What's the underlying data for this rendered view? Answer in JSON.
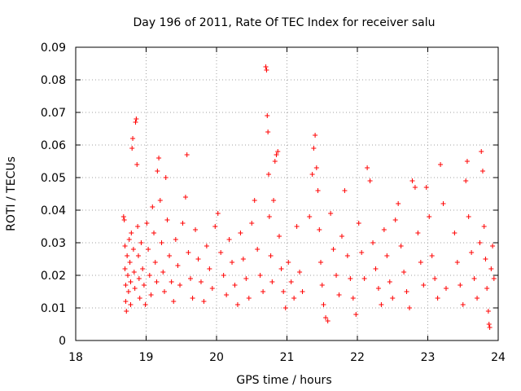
{
  "chart_data": {
    "type": "scatter",
    "title": "Day 196 of 2011, Rate Of TEC Index for receiver salu",
    "xlabel": "GPS time / hours",
    "ylabel": "ROTI / TECUs",
    "xlim": [
      18,
      24
    ],
    "ylim": [
      0,
      0.09
    ],
    "xticks": [
      "18",
      "19",
      "20",
      "21",
      "22",
      "23",
      "24"
    ],
    "yticks": [
      "0",
      "0.01",
      "0.02",
      "0.03",
      "0.04",
      "0.05",
      "0.06",
      "0.07",
      "0.08",
      "0.09"
    ],
    "grid": true,
    "legend": "none",
    "marker": "plus",
    "color": "#ff0000",
    "series": [
      {
        "points": [
          [
            18.68,
            0.038
          ],
          [
            18.69,
            0.037
          ],
          [
            18.7,
            0.029
          ],
          [
            18.7,
            0.022
          ],
          [
            18.71,
            0.017
          ],
          [
            18.71,
            0.012
          ],
          [
            18.72,
            0.009
          ],
          [
            18.73,
            0.026
          ],
          [
            18.74,
            0.02
          ],
          [
            18.75,
            0.015
          ],
          [
            18.76,
            0.031
          ],
          [
            18.77,
            0.024
          ],
          [
            18.78,
            0.018
          ],
          [
            18.78,
            0.011
          ],
          [
            18.79,
            0.033
          ],
          [
            18.8,
            0.059
          ],
          [
            18.81,
            0.062
          ],
          [
            18.82,
            0.028
          ],
          [
            18.83,
            0.021
          ],
          [
            18.84,
            0.016
          ],
          [
            18.85,
            0.067
          ],
          [
            18.86,
            0.068
          ],
          [
            18.87,
            0.054
          ],
          [
            18.88,
            0.035
          ],
          [
            18.89,
            0.026
          ],
          [
            18.9,
            0.019
          ],
          [
            18.91,
            0.013
          ],
          [
            18.93,
            0.03
          ],
          [
            18.95,
            0.022
          ],
          [
            18.97,
            0.017
          ],
          [
            18.99,
            0.011
          ],
          [
            19.01,
            0.036
          ],
          [
            19.03,
            0.028
          ],
          [
            19.05,
            0.02
          ],
          [
            19.07,
            0.014
          ],
          [
            19.09,
            0.041
          ],
          [
            19.11,
            0.033
          ],
          [
            19.13,
            0.024
          ],
          [
            19.15,
            0.018
          ],
          [
            19.16,
            0.052
          ],
          [
            19.18,
            0.056
          ],
          [
            19.2,
            0.043
          ],
          [
            19.22,
            0.03
          ],
          [
            19.24,
            0.021
          ],
          [
            19.26,
            0.015
          ],
          [
            19.28,
            0.05
          ],
          [
            19.3,
            0.037
          ],
          [
            19.33,
            0.026
          ],
          [
            19.36,
            0.018
          ],
          [
            19.39,
            0.012
          ],
          [
            19.42,
            0.031
          ],
          [
            19.45,
            0.023
          ],
          [
            19.48,
            0.017
          ],
          [
            19.52,
            0.036
          ],
          [
            19.56,
            0.044
          ],
          [
            19.58,
            0.057
          ],
          [
            19.6,
            0.027
          ],
          [
            19.63,
            0.019
          ],
          [
            19.66,
            0.013
          ],
          [
            19.7,
            0.034
          ],
          [
            19.74,
            0.025
          ],
          [
            19.78,
            0.018
          ],
          [
            19.82,
            0.012
          ],
          [
            19.86,
            0.029
          ],
          [
            19.9,
            0.022
          ],
          [
            19.94,
            0.016
          ],
          [
            19.98,
            0.035
          ],
          [
            20.02,
            0.039
          ],
          [
            20.06,
            0.027
          ],
          [
            20.1,
            0.02
          ],
          [
            20.14,
            0.014
          ],
          [
            20.18,
            0.031
          ],
          [
            20.22,
            0.024
          ],
          [
            20.26,
            0.017
          ],
          [
            20.3,
            0.011
          ],
          [
            20.34,
            0.033
          ],
          [
            20.38,
            0.025
          ],
          [
            20.42,
            0.019
          ],
          [
            20.46,
            0.013
          ],
          [
            20.5,
            0.036
          ],
          [
            20.54,
            0.043
          ],
          [
            20.58,
            0.028
          ],
          [
            20.62,
            0.02
          ],
          [
            20.66,
            0.015
          ],
          [
            20.7,
            0.084
          ],
          [
            20.71,
            0.083
          ],
          [
            20.72,
            0.069
          ],
          [
            20.73,
            0.064
          ],
          [
            20.74,
            0.051
          ],
          [
            20.75,
            0.038
          ],
          [
            20.77,
            0.026
          ],
          [
            20.79,
            0.018
          ],
          [
            20.81,
            0.043
          ],
          [
            20.83,
            0.055
          ],
          [
            20.85,
            0.057
          ],
          [
            20.87,
            0.058
          ],
          [
            20.89,
            0.032
          ],
          [
            20.92,
            0.022
          ],
          [
            20.95,
            0.015
          ],
          [
            20.98,
            0.01
          ],
          [
            21.02,
            0.024
          ],
          [
            21.06,
            0.018
          ],
          [
            21.1,
            0.013
          ],
          [
            21.14,
            0.035
          ],
          [
            21.18,
            0.021
          ],
          [
            21.22,
            0.015
          ],
          [
            21.32,
            0.038
          ],
          [
            21.36,
            0.051
          ],
          [
            21.38,
            0.059
          ],
          [
            21.4,
            0.063
          ],
          [
            21.42,
            0.053
          ],
          [
            21.44,
            0.046
          ],
          [
            21.46,
            0.034
          ],
          [
            21.48,
            0.024
          ],
          [
            21.5,
            0.017
          ],
          [
            21.52,
            0.011
          ],
          [
            21.55,
            0.007
          ],
          [
            21.58,
            0.006
          ],
          [
            21.62,
            0.039
          ],
          [
            21.66,
            0.028
          ],
          [
            21.7,
            0.02
          ],
          [
            21.74,
            0.014
          ],
          [
            21.78,
            0.032
          ],
          [
            21.82,
            0.046
          ],
          [
            21.86,
            0.026
          ],
          [
            21.9,
            0.019
          ],
          [
            21.94,
            0.013
          ],
          [
            21.98,
            0.008
          ],
          [
            22.02,
            0.036
          ],
          [
            22.06,
            0.027
          ],
          [
            22.1,
            0.019
          ],
          [
            22.14,
            0.053
          ],
          [
            22.18,
            0.049
          ],
          [
            22.22,
            0.03
          ],
          [
            22.26,
            0.022
          ],
          [
            22.3,
            0.016
          ],
          [
            22.34,
            0.011
          ],
          [
            22.38,
            0.034
          ],
          [
            22.42,
            0.026
          ],
          [
            22.46,
            0.018
          ],
          [
            22.5,
            0.013
          ],
          [
            22.54,
            0.037
          ],
          [
            22.58,
            0.042
          ],
          [
            22.62,
            0.029
          ],
          [
            22.66,
            0.021
          ],
          [
            22.7,
            0.015
          ],
          [
            22.74,
            0.01
          ],
          [
            22.78,
            0.049
          ],
          [
            22.82,
            0.047
          ],
          [
            22.86,
            0.033
          ],
          [
            22.9,
            0.024
          ],
          [
            22.94,
            0.017
          ],
          [
            22.98,
            0.047
          ],
          [
            23.02,
            0.038
          ],
          [
            23.06,
            0.026
          ],
          [
            23.1,
            0.019
          ],
          [
            23.14,
            0.013
          ],
          [
            23.18,
            0.054
          ],
          [
            23.22,
            0.042
          ],
          [
            23.26,
            0.016
          ],
          [
            23.38,
            0.033
          ],
          [
            23.42,
            0.024
          ],
          [
            23.46,
            0.017
          ],
          [
            23.5,
            0.011
          ],
          [
            23.54,
            0.049
          ],
          [
            23.56,
            0.055
          ],
          [
            23.58,
            0.038
          ],
          [
            23.62,
            0.027
          ],
          [
            23.66,
            0.019
          ],
          [
            23.7,
            0.013
          ],
          [
            23.74,
            0.03
          ],
          [
            23.76,
            0.058
          ],
          [
            23.78,
            0.052
          ],
          [
            23.8,
            0.035
          ],
          [
            23.82,
            0.025
          ],
          [
            23.84,
            0.016
          ],
          [
            23.86,
            0.009
          ],
          [
            23.87,
            0.005
          ],
          [
            23.88,
            0.004
          ],
          [
            23.9,
            0.022
          ],
          [
            23.92,
            0.029
          ],
          [
            23.94,
            0.019
          ]
        ]
      }
    ]
  }
}
